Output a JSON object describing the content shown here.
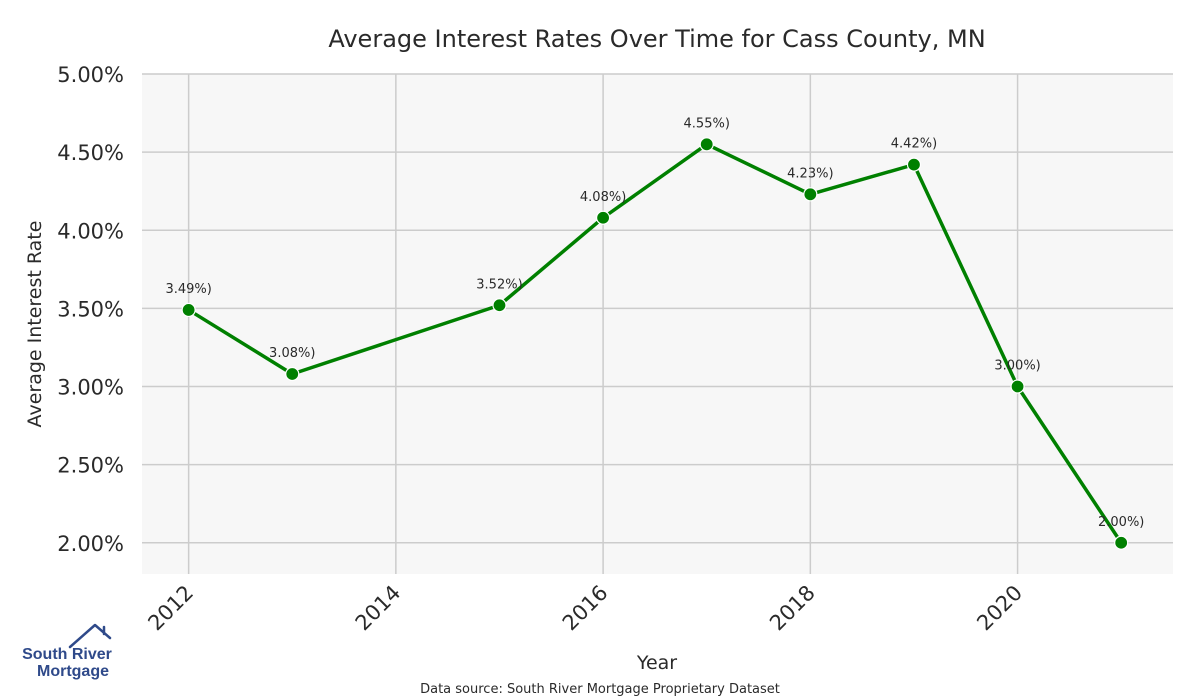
{
  "chart_data": {
    "type": "line",
    "title": "Average Interest Rates Over Time for Cass County, MN",
    "xlabel": "Year",
    "ylabel": "Average Interest Rate",
    "x": [
      2012,
      2013,
      2015,
      2016,
      2017,
      2018,
      2019,
      2020,
      2021
    ],
    "y": [
      3.49,
      3.08,
      3.52,
      4.08,
      4.55,
      4.23,
      4.42,
      3.0,
      2.0
    ],
    "data_labels": [
      "3.49%)",
      "3.08%)",
      "3.52%)",
      "4.08%)",
      "4.55%)",
      "4.23%)",
      "4.42%)",
      "3.00%)",
      "2.00%)"
    ],
    "x_ticks": [
      2012,
      2014,
      2016,
      2018,
      2020
    ],
    "y_ticks": [
      2.0,
      2.5,
      3.0,
      3.5,
      4.0,
      4.5,
      5.0
    ],
    "y_tick_labels": [
      "2.00%",
      "2.50%",
      "3.00%",
      "3.50%",
      "4.00%",
      "4.50%",
      "5.00%"
    ],
    "xlim": [
      2011.55,
      2021.5
    ],
    "ylim": [
      1.8,
      5.0
    ],
    "grid": true,
    "line_color": "#008000",
    "background_color": "#f7f7f7",
    "grid_color": "#cccccc"
  },
  "source": "Data source: South River Mortgage Proprietary Dataset",
  "logo": {
    "line1": "South River",
    "line2": "Mortgage",
    "color": "#2f4a8a"
  }
}
